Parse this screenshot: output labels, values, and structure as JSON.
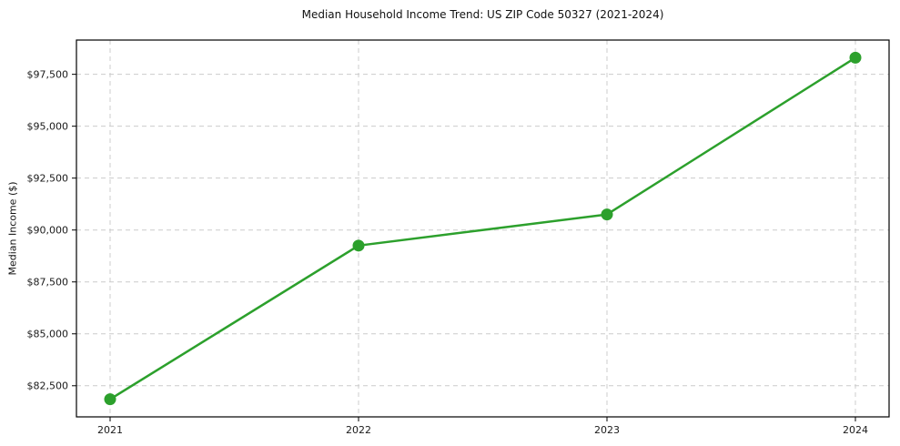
{
  "chart_data": {
    "type": "line",
    "title": "Median Household Income Trend: US ZIP Code 50327 (2021-2024)",
    "xlabel": "",
    "ylabel": "Median Income ($)",
    "categories": [
      "2021",
      "2022",
      "2023",
      "2024"
    ],
    "series": [
      {
        "name": "Median Household Income",
        "values": [
          81850,
          89250,
          90750,
          98300
        ]
      }
    ],
    "y_ticks": [
      82500,
      85000,
      87500,
      90000,
      92500,
      95000,
      97500
    ],
    "y_tick_labels": [
      "$82,500",
      "$85,000",
      "$87,500",
      "$90,000",
      "$92,500",
      "$95,000",
      "$97,500"
    ],
    "ylim": [
      81000,
      99150
    ],
    "grid": true,
    "grid_style": "dashed",
    "legend": false,
    "line_color": "#2ca02c",
    "marker": "circle",
    "marker_radius": 6.5,
    "line_width": 2.5,
    "grid_color": "#cccccc",
    "spine_color": "#000000",
    "background_color": "#ffffff"
  }
}
